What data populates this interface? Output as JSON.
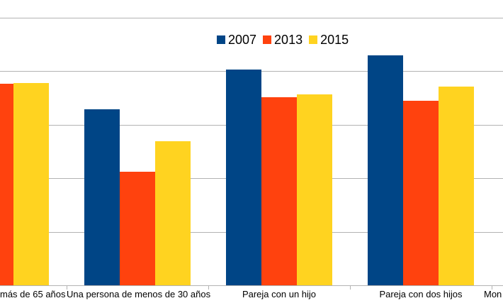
{
  "legend": {
    "items": [
      {
        "label": "2007",
        "color": "#004586"
      },
      {
        "label": "2013",
        "color": "#FF420E"
      },
      {
        "label": "2015",
        "color": "#FFD320"
      }
    ]
  },
  "chart_data": {
    "type": "bar",
    "title": "",
    "xlabel": "",
    "ylabel": "",
    "categories": [
      "más de 65 años",
      "Una persona de menos de 30 años",
      "Pareja con un hijo",
      "Pareja con dos hijos",
      "Mon"
    ],
    "clipped_categories": [
      0,
      4
    ],
    "series": [
      {
        "name": "2007",
        "color": "#004586",
        "values": [
          null,
          3.29,
          4.03,
          4.3,
          null
        ]
      },
      {
        "name": "2013",
        "color": "#FF420E",
        "values": [
          3.77,
          2.12,
          3.51,
          3.45,
          null
        ]
      },
      {
        "name": "2015",
        "color": "#FFD320",
        "values": [
          3.78,
          2.69,
          3.57,
          3.71,
          null
        ]
      }
    ],
    "value_units": "gridline intervals (y-axis tick labels cropped out of frame)",
    "ylim": [
      0,
      5
    ],
    "y_axis_tick_labels_visible": false,
    "grid": true,
    "gridline_color": "#b3b3b3",
    "legend_position": "top-center"
  }
}
